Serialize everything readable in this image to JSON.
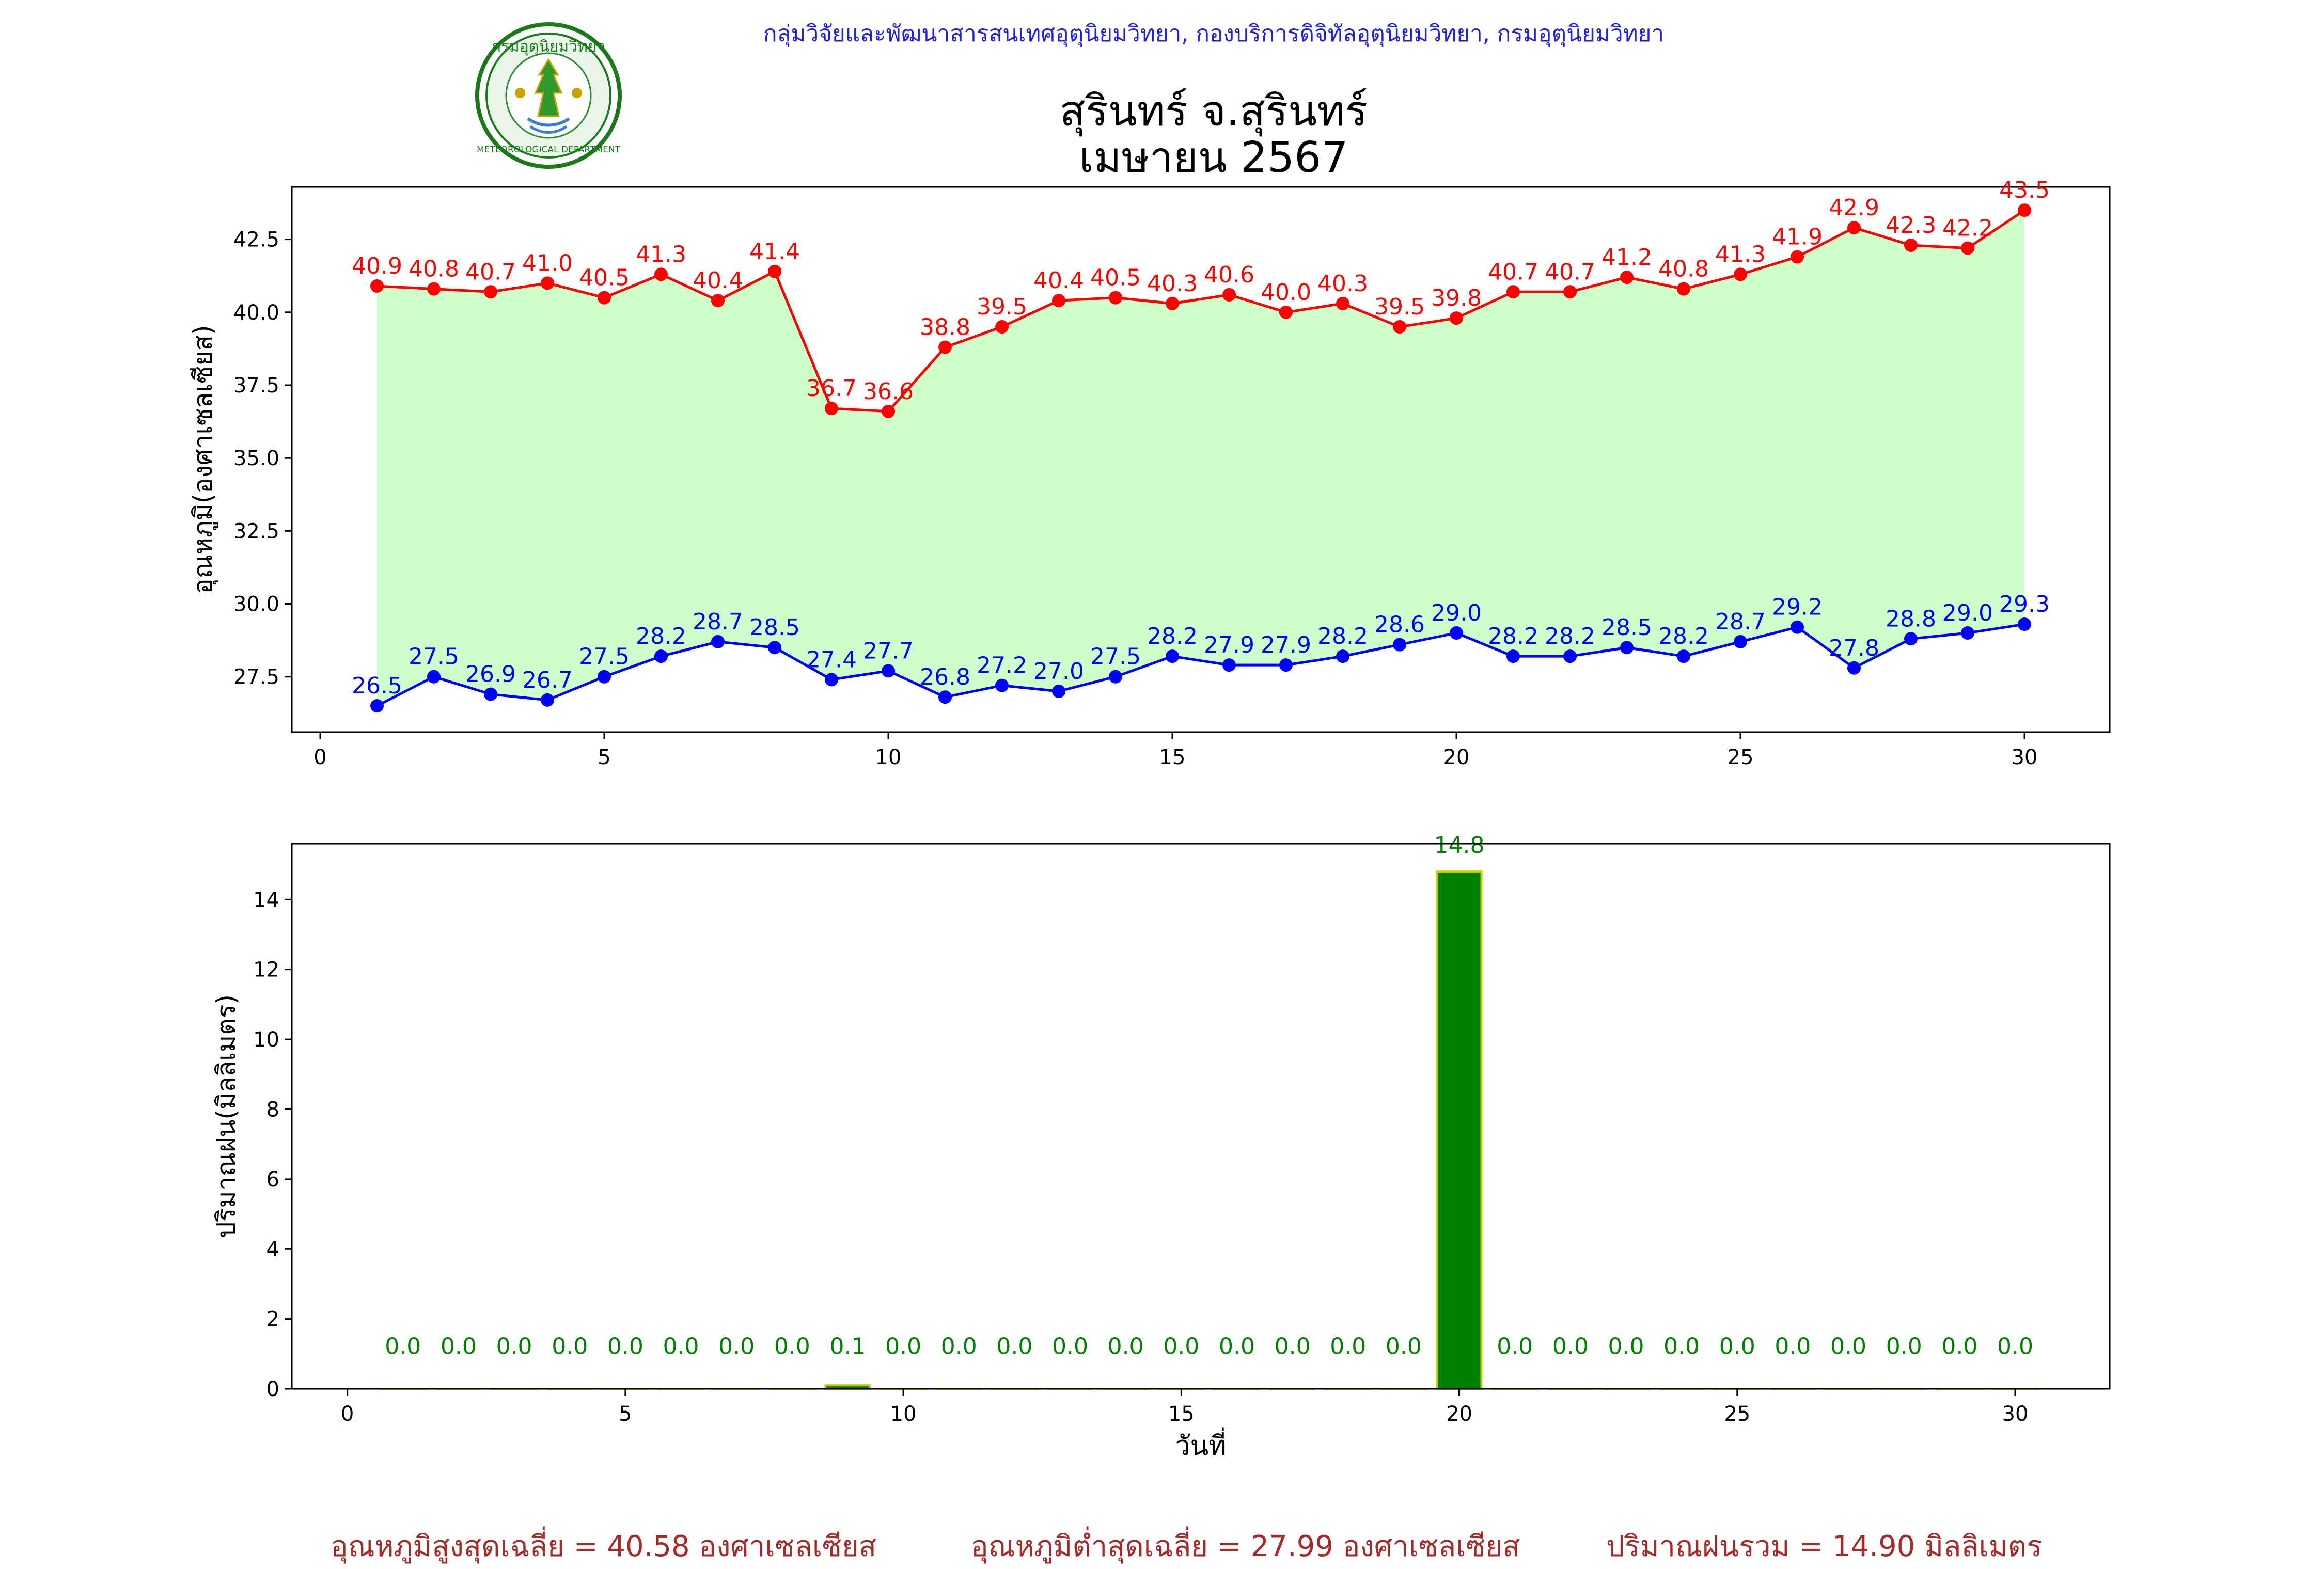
{
  "header": {
    "department": "กลุ่มวิจัยและพัฒนาสารสนเทศอุตุนิยมวิทยา, กองบริการดิจิทัลอุตุนิยมวิทยา, กรมอุตุนิยมวิทยา",
    "title_line1": "สุรินทร์ จ.สุรินทร์",
    "title_line2": "เมษายน 2567",
    "logo_text_top": "กรมอุตุนิยมวิทยา",
    "logo_text_bottom": "METEOROLOGICAL DEPARTMENT"
  },
  "colors": {
    "max_temp": "#ff0000",
    "min_temp": "#0000ff",
    "fill": "#ccffcc",
    "rain_bar": "#008000",
    "rain_edge": "#cccc00",
    "rain_label": "#008000",
    "footer": "#a52a2a"
  },
  "chart_data": [
    {
      "type": "line",
      "ylabel": "อุณหภูมิ(องศาเซลเซียส)",
      "xlim": [
        -0.5,
        31.5
      ],
      "ylim": [
        25.6,
        44.3
      ],
      "xticks": [
        0,
        5,
        10,
        15,
        20,
        25,
        30
      ],
      "yticks": [
        27.5,
        30.0,
        32.5,
        35.0,
        37.5,
        40.0,
        42.5
      ],
      "grid": false,
      "x": [
        1,
        2,
        3,
        4,
        5,
        6,
        7,
        8,
        9,
        10,
        11,
        12,
        13,
        14,
        15,
        16,
        17,
        18,
        19,
        20,
        21,
        22,
        23,
        24,
        25,
        26,
        27,
        28,
        29,
        30
      ],
      "series": [
        {
          "values": [
            40.9,
            40.8,
            40.7,
            41.0,
            40.5,
            41.3,
            40.4,
            41.4,
            36.7,
            36.6,
            38.8,
            39.5,
            40.4,
            40.5,
            40.3,
            40.6,
            40.0,
            40.3,
            39.5,
            39.8,
            40.7,
            40.7,
            41.2,
            40.8,
            41.3,
            41.9,
            42.9,
            42.3,
            42.2,
            43.5
          ],
          "labels": [
            "40.9",
            "40.8",
            "40.7",
            "41.0",
            "40.5",
            "41.3",
            "40.4",
            "41.4",
            "36.7",
            "36.6",
            "38.8",
            "39.5",
            "40.4",
            "40.5",
            "40.3",
            "40.6",
            "40.0",
            "40.3",
            "39.5",
            "39.8",
            "40.7",
            "40.7",
            "41.2",
            "40.8",
            "41.3",
            "41.9",
            "42.9",
            "42.3",
            "42.2",
            "43.5"
          ]
        },
        {
          "values": [
            26.5,
            27.5,
            26.9,
            26.7,
            27.5,
            28.2,
            28.7,
            28.5,
            27.4,
            27.7,
            26.8,
            27.2,
            27.0,
            27.5,
            28.2,
            27.9,
            27.9,
            28.2,
            28.6,
            29.0,
            28.2,
            28.2,
            28.5,
            28.2,
            28.7,
            29.2,
            27.8,
            28.8,
            29.0,
            29.3
          ],
          "labels": [
            "26.5",
            "27.5",
            "26.9",
            "26.7",
            "27.5",
            "28.2",
            "28.7",
            "28.5",
            "27.4",
            "27.7",
            "26.8",
            "27.2",
            "27.0",
            "27.5",
            "28.2",
            "27.9",
            "27.9",
            "28.2",
            "28.6",
            "29.0",
            "28.2",
            "28.2",
            "28.5",
            "28.2",
            "28.7",
            "29.2",
            "27.8",
            "28.8",
            "29.0",
            "29.3"
          ]
        }
      ]
    },
    {
      "type": "bar",
      "ylabel": "ปริมาณฝน(มิลลิเมตร)",
      "xlabel": "วันที่",
      "xlim": [
        -1.0,
        31.7
      ],
      "ylim": [
        0,
        15.6
      ],
      "xticks": [
        0,
        5,
        10,
        15,
        20,
        25,
        30
      ],
      "yticks": [
        0,
        2,
        4,
        6,
        8,
        10,
        12,
        14
      ],
      "grid": false,
      "x": [
        1,
        2,
        3,
        4,
        5,
        6,
        7,
        8,
        9,
        10,
        11,
        12,
        13,
        14,
        15,
        16,
        17,
        18,
        19,
        20,
        21,
        22,
        23,
        24,
        25,
        26,
        27,
        28,
        29,
        30
      ],
      "values": [
        0.0,
        0.0,
        0.0,
        0.0,
        0.0,
        0.0,
        0.0,
        0.0,
        0.1,
        0.0,
        0.0,
        0.0,
        0.0,
        0.0,
        0.0,
        0.0,
        0.0,
        0.0,
        0.0,
        14.8,
        0.0,
        0.0,
        0.0,
        0.0,
        0.0,
        0.0,
        0.0,
        0.0,
        0.0,
        0.0
      ],
      "labels": [
        "0.0",
        "0.0",
        "0.0",
        "0.0",
        "0.0",
        "0.0",
        "0.0",
        "0.0",
        "0.1",
        "0.0",
        "0.0",
        "0.0",
        "0.0",
        "0.0",
        "0.0",
        "0.0",
        "0.0",
        "0.0",
        "0.0",
        "14.8",
        "0.0",
        "0.0",
        "0.0",
        "0.0",
        "0.0",
        "0.0",
        "0.0",
        "0.0",
        "0.0",
        "0.0"
      ]
    }
  ],
  "footer": {
    "avg_max": "อุณหภูมิสูงสุดเฉลี่ย = 40.58 องศาเซลเซียส",
    "avg_min": "อุณหภูมิต่ำสุดเฉลี่ย = 27.99 องศาเซลเซียส",
    "total_rain": "ปริมาณฝนรวม = 14.90 มิลลิเมตร"
  }
}
